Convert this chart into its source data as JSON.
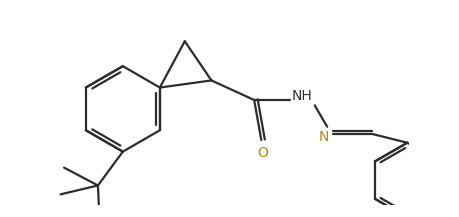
{
  "background_color": "#ffffff",
  "line_color": "#2d2d2d",
  "label_color_O": "#b8860b",
  "label_color_N": "#b8860b",
  "label_color_F": "#2d2d2d",
  "line_width": 1.6,
  "figsize": [
    4.6,
    2.17
  ],
  "dpi": 100,
  "xlim": [
    0,
    460
  ],
  "ylim": [
    0,
    217
  ]
}
